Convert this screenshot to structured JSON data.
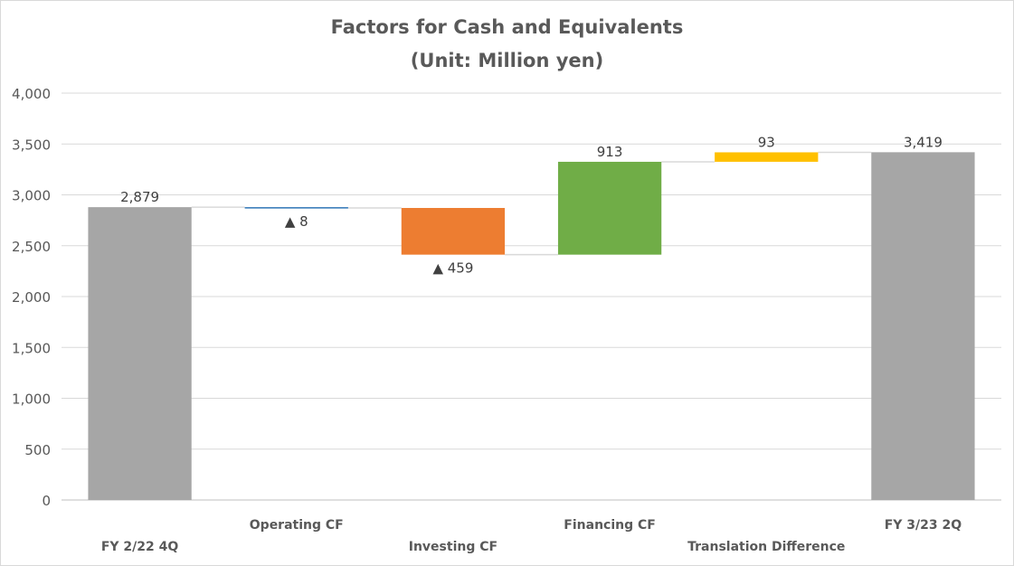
{
  "chart_data": {
    "type": "bar",
    "subtype": "waterfall",
    "title": "Factors for Cash and Equivalents",
    "subtitle": "(Unit: Million yen)",
    "ylim": [
      0,
      4000
    ],
    "yticks": [
      "0",
      "500",
      "1,000",
      "1,500",
      "2,000",
      "2,500",
      "3,000",
      "3,500",
      "4,000"
    ],
    "ytick_values": [
      0,
      500,
      1000,
      1500,
      2000,
      2500,
      3000,
      3500,
      4000
    ],
    "grid": true,
    "legend": "none",
    "categories": [
      "FY 2/22 4Q",
      "Operating CF",
      "Investing CF",
      "Financing CF",
      "Translation Difference",
      "FY 3/23 2Q"
    ],
    "bars": [
      {
        "category": "FY 2/22 4Q",
        "kind": "total",
        "start": 0,
        "end": 2879,
        "label": "2,879",
        "color": "#a6a6a6"
      },
      {
        "category": "Operating CF",
        "kind": "decrease",
        "start": 2879,
        "end": 2871,
        "label": "▲ 8",
        "color": "#2e75b6"
      },
      {
        "category": "Investing CF",
        "kind": "decrease",
        "start": 2871,
        "end": 2412,
        "label": "▲ 459",
        "color": "#ed7d31"
      },
      {
        "category": "Financing CF",
        "kind": "increase",
        "start": 2412,
        "end": 3325,
        "label": "913",
        "color": "#70ad47"
      },
      {
        "category": "Translation Difference",
        "kind": "increase",
        "start": 3325,
        "end": 3418,
        "label": "93",
        "color": "#ffc000"
      },
      {
        "category": "FY 3/23 2Q",
        "kind": "total",
        "start": 0,
        "end": 3419,
        "label": "3,419",
        "color": "#a6a6a6"
      }
    ]
  }
}
